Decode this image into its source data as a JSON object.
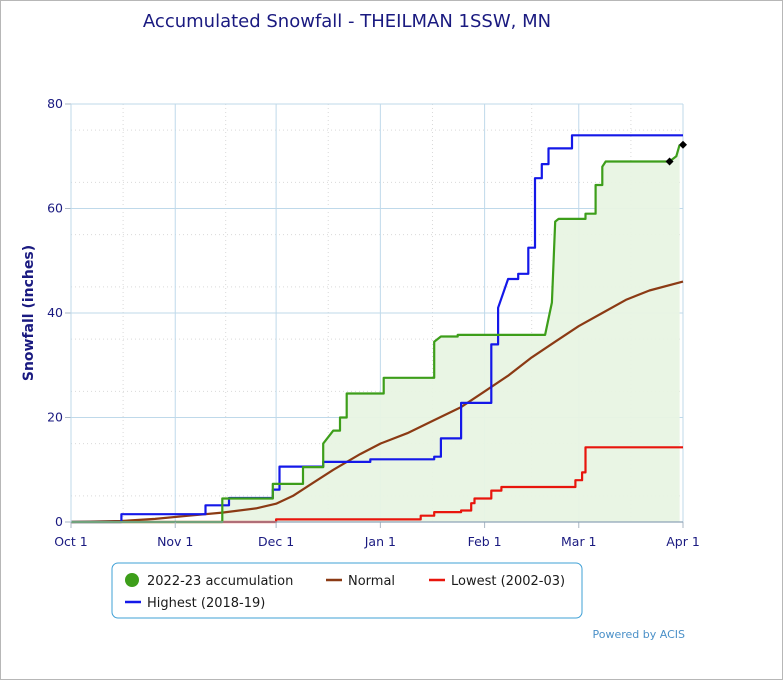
{
  "chart_data": {
    "type": "line",
    "title": "Accumulated Snowfall - THEILMAN 1SSW, MN",
    "ylabel": "Snowfall (inches)",
    "xlabel": "",
    "ylim": [
      0,
      80
    ],
    "xlim": [
      0,
      182
    ],
    "grid": true,
    "yticks": [
      0,
      20,
      40,
      60,
      80
    ],
    "xticks": [
      {
        "label": "Oct 1",
        "day": 0
      },
      {
        "label": "Nov 1",
        "day": 31
      },
      {
        "label": "Dec 1",
        "day": 61
      },
      {
        "label": "Jan 1",
        "day": 92
      },
      {
        "label": "Feb 1",
        "day": 123
      },
      {
        "label": "Mar 1",
        "day": 151
      },
      {
        "label": "Apr 1",
        "day": 182
      }
    ],
    "legend_position": "bottom",
    "credit": "Powered by ACIS",
    "series": [
      {
        "name": "Normal",
        "color": "#8b3a14",
        "fill": false,
        "points": [
          [
            0,
            0
          ],
          [
            15,
            0.2
          ],
          [
            25,
            0.6
          ],
          [
            35,
            1.2
          ],
          [
            45,
            1.8
          ],
          [
            55,
            2.6
          ],
          [
            61,
            3.5
          ],
          [
            66,
            5
          ],
          [
            72,
            7.5
          ],
          [
            78,
            10
          ],
          [
            86,
            13
          ],
          [
            92,
            15
          ],
          [
            100,
            17
          ],
          [
            108,
            19.5
          ],
          [
            116,
            22
          ],
          [
            123,
            25
          ],
          [
            130,
            28
          ],
          [
            137,
            31.5
          ],
          [
            144,
            34.5
          ],
          [
            151,
            37.5
          ],
          [
            158,
            40
          ],
          [
            165,
            42.5
          ],
          [
            172,
            44.3
          ],
          [
            182,
            46
          ]
        ]
      },
      {
        "name": "Lowest (2002-03)",
        "color": "#e8150c",
        "fill": false,
        "points": [
          [
            0,
            0
          ],
          [
            61,
            0
          ],
          [
            61,
            0.5
          ],
          [
            104,
            0.5
          ],
          [
            104,
            1.2
          ],
          [
            108,
            1.2
          ],
          [
            108,
            1.9
          ],
          [
            116,
            1.9
          ],
          [
            116,
            2.2
          ],
          [
            119,
            2.2
          ],
          [
            119,
            3.6
          ],
          [
            120,
            3.6
          ],
          [
            120,
            4.5
          ],
          [
            125,
            4.5
          ],
          [
            125,
            6
          ],
          [
            128,
            6
          ],
          [
            128,
            6.7
          ],
          [
            150,
            6.7
          ],
          [
            150,
            8
          ],
          [
            152,
            8
          ],
          [
            152,
            9.5
          ],
          [
            153,
            9.5
          ],
          [
            153,
            14.3
          ],
          [
            182,
            14.3
          ]
        ]
      },
      {
        "name": "Highest (2018-19)",
        "color": "#1418e8",
        "fill": false,
        "points": [
          [
            0,
            0
          ],
          [
            15,
            0
          ],
          [
            15,
            1.5
          ],
          [
            40,
            1.5
          ],
          [
            40,
            3.2
          ],
          [
            47,
            3.2
          ],
          [
            47,
            4.6
          ],
          [
            60,
            4.6
          ],
          [
            60,
            6.2
          ],
          [
            62,
            6.2
          ],
          [
            62,
            10.6
          ],
          [
            75,
            10.6
          ],
          [
            75,
            11.5
          ],
          [
            89,
            11.5
          ],
          [
            89,
            12
          ],
          [
            108,
            12
          ],
          [
            108,
            12.5
          ],
          [
            110,
            12.5
          ],
          [
            110,
            16
          ],
          [
            116,
            16
          ],
          [
            116,
            22.8
          ],
          [
            125,
            22.8
          ],
          [
            125,
            34
          ],
          [
            127,
            34
          ],
          [
            127,
            41
          ],
          [
            130,
            46.5
          ],
          [
            133,
            46.5
          ],
          [
            133,
            47.5
          ],
          [
            136,
            47.5
          ],
          [
            136,
            52.5
          ],
          [
            138,
            52.5
          ],
          [
            138,
            65.8
          ],
          [
            140,
            65.8
          ],
          [
            140,
            68.5
          ],
          [
            142,
            68.5
          ],
          [
            142,
            71.5
          ],
          [
            149,
            71.5
          ],
          [
            149,
            74
          ],
          [
            182,
            74
          ]
        ]
      },
      {
        "name": "2022-23 accumulation",
        "color": "#3d9e1a",
        "fill": true,
        "fill_color": "#e8f4e3",
        "points": [
          [
            0,
            0
          ],
          [
            45,
            0
          ],
          [
            45,
            4.5
          ],
          [
            60,
            4.5
          ],
          [
            60,
            7.3
          ],
          [
            69,
            7.3
          ],
          [
            69,
            10.5
          ],
          [
            75,
            10.5
          ],
          [
            75,
            15
          ],
          [
            78,
            17.5
          ],
          [
            80,
            17.5
          ],
          [
            80,
            20
          ],
          [
            82,
            20
          ],
          [
            82,
            24.6
          ],
          [
            93,
            24.6
          ],
          [
            93,
            27.6
          ],
          [
            108,
            27.6
          ],
          [
            108,
            34.5
          ],
          [
            110,
            35.5
          ],
          [
            115,
            35.5
          ],
          [
            115,
            35.8
          ],
          [
            141,
            35.8
          ],
          [
            143,
            42
          ],
          [
            144,
            57.5
          ],
          [
            145,
            58
          ],
          [
            153,
            58
          ],
          [
            153,
            59
          ],
          [
            156,
            59
          ],
          [
            156,
            64.5
          ],
          [
            158,
            64.5
          ],
          [
            158,
            68
          ],
          [
            159,
            69
          ],
          [
            178,
            69
          ],
          [
            180,
            70
          ],
          [
            181,
            72.2
          ]
        ]
      }
    ],
    "markers": [
      {
        "day": 178,
        "value": 69
      },
      {
        "day": 182,
        "value": 72.2
      }
    ]
  }
}
